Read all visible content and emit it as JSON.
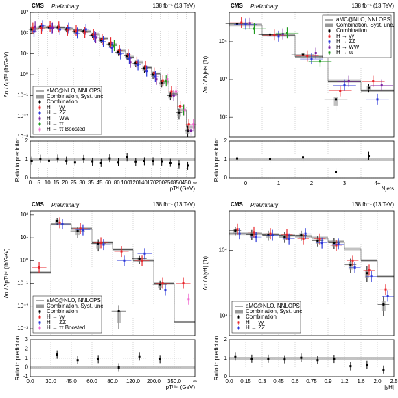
{
  "chart_data": [
    {
      "type": "log-histogram",
      "title": "CMS",
      "subtitle": "Preliminary",
      "lumi": "138 fb⁻¹ (13 TeV)",
      "ylabel": "Δσ / ΔpTᴴ (fb/GeV)",
      "xlabel": "pTᴴ (GeV)",
      "ratio_ylabel": "Ratio to prediction",
      "bin_edges": [
        "0",
        "5",
        "10",
        "15",
        "20",
        "25",
        "30",
        "35",
        "45",
        "60",
        "80",
        "100",
        "120",
        "140",
        "170",
        "200",
        "250",
        "350",
        "450",
        "∞"
      ],
      "prediction_name": "aMC@NLO, NNLOPS",
      "syst_name": "Combination, Syst. unc.",
      "prediction": [
        160,
        190,
        195,
        180,
        160,
        140,
        120,
        90,
        55,
        28,
        14,
        7,
        4,
        2.2,
        1.1,
        0.45,
        0.12,
        0.02,
        0.003
      ],
      "series": [
        {
          "name": "Combination",
          "color": "#000000",
          "values": [
            150,
            200,
            185,
            190,
            150,
            120,
            125,
            80,
            45,
            30,
            12,
            8,
            3.5,
            2,
            1.0,
            0.4,
            0.1,
            0.015,
            0.002
          ],
          "errors": [
            60,
            50,
            45,
            45,
            40,
            35,
            35,
            20,
            12,
            8,
            4,
            3,
            1.2,
            0.8,
            0.4,
            0.15,
            0.04,
            0.008,
            0.0015
          ],
          "ratio": [
            0.94,
            1.05,
            0.95,
            1.06,
            0.94,
            0.86,
            1.04,
            0.89,
            0.82,
            1.07,
            0.86,
            1.14,
            0.88,
            0.91,
            0.91,
            0.89,
            0.83,
            0.75,
            0.67
          ]
        },
        {
          "name": "H → γγ",
          "color": "#e8242a",
          "values": [
            180,
            170,
            210,
            200,
            140,
            130,
            110,
            85,
            50,
            35,
            15,
            9,
            4,
            2.5,
            1.2,
            0.5,
            0.15,
            0.03,
            0.004
          ]
        },
        {
          "name": "H → ZZ",
          "color": "#2a36d8",
          "values": [
            120,
            230,
            170,
            150,
            180,
            100,
            150,
            70,
            40,
            20,
            10,
            6,
            3,
            1.5,
            0.8,
            null,
            null,
            null,
            null
          ]
        },
        {
          "name": "H → WW",
          "color": "#7a1fa0",
          "values": [
            200,
            null,
            180,
            null,
            null,
            null,
            null,
            60,
            null,
            null,
            null,
            4,
            null,
            null,
            0.6,
            null,
            0.1,
            null,
            0.002
          ]
        },
        {
          "name": "H → ττ",
          "color": "#1f9a1f",
          "values": [
            null,
            null,
            null,
            null,
            null,
            null,
            null,
            null,
            null,
            25,
            null,
            null,
            null,
            null,
            null,
            0.5,
            null,
            0.02,
            null
          ]
        },
        {
          "name": "H → ττ Boosted",
          "color": "#f06bd0",
          "values": [
            null,
            null,
            null,
            null,
            null,
            null,
            null,
            null,
            null,
            null,
            null,
            null,
            null,
            null,
            null,
            0.6,
            0.15,
            0.02,
            0.004
          ]
        }
      ],
      "ylim": [
        0.001,
        1000
      ],
      "yticks": [
        {
          "value": 0.001,
          "label": "10⁻³"
        },
        {
          "value": 0.01,
          "label": "10⁻²"
        },
        {
          "value": 0.1,
          "label": "10⁻¹"
        },
        {
          "value": 1,
          "label": "10⁰"
        },
        {
          "value": 10,
          "label": "10¹"
        },
        {
          "value": 100,
          "label": "10²"
        },
        {
          "value": 1000,
          "label": "10³"
        }
      ],
      "ratio_ylim": [
        0,
        2
      ],
      "ratio_yticks": [
        0,
        1,
        2
      ],
      "grid": true,
      "legend": "lower left"
    },
    {
      "type": "log-bar",
      "title": "CMS",
      "subtitle": "Preliminary",
      "lumi": "138 fb⁻¹ (13 TeV)",
      "ylabel": "Δσ / ΔNjets (fb)",
      "xlabel": "Njets",
      "ratio_ylabel": "Ratio to prediction",
      "categories": [
        "0",
        "1",
        "2",
        "3",
        "4+"
      ],
      "prediction_name": "aMC@NLO, NNLOPS",
      "syst_name": "Combination, Syst. unc.",
      "prediction": [
        28000,
        15000,
        4000,
        900,
        500
      ],
      "series": [
        {
          "name": "Combination",
          "color": "#000000",
          "values": [
            30000,
            15500,
            4500,
            300,
            600
          ],
          "errors": [
            3000,
            2000,
            1200,
            150,
            150
          ],
          "ratio": [
            1.07,
            1.03,
            1.12,
            0.33,
            1.2
          ]
        },
        {
          "name": "H → γγ",
          "color": "#e8242a",
          "values": [
            32000,
            15000,
            4200,
            500,
            900
          ]
        },
        {
          "name": "H → ZZ",
          "color": "#2a36d8",
          "values": [
            29000,
            14000,
            3500,
            700,
            300
          ]
        },
        {
          "name": "H → WW",
          "color": "#7a1fa0",
          "values": [
            31000,
            16000,
            5000,
            900,
            700
          ]
        },
        {
          "name": "H → ττ",
          "color": "#1f9a1f",
          "values": [
            22000,
            17000,
            3000,
            null,
            null
          ]
        }
      ],
      "ylim": [
        30,
        60000
      ],
      "yticks": [
        {
          "value": 100,
          "label": "10²"
        },
        {
          "value": 1000,
          "label": "10³"
        },
        {
          "value": 10000,
          "label": "10⁴"
        }
      ],
      "ratio_ylim": [
        0,
        2
      ],
      "ratio_yticks": [
        0,
        1,
        2
      ],
      "grid": true,
      "legend": "upper right"
    },
    {
      "type": "log-histogram",
      "title": "CMS",
      "subtitle": "Preliminary",
      "lumi": "138 fb⁻¹ (13 TeV)",
      "ylabel": "Δσ / ΔpTᴴʲᵉᵗ (fb/GeV)",
      "xlabel": "pTᴴʲᵉᵗ (GeV)",
      "ratio_ylabel": "Ratio to prediction",
      "bin_edges": [
        "0.0",
        "30.0",
        "45.0",
        "60.0",
        "80.0",
        "120.0",
        "200.0",
        "350.0",
        "∞"
      ],
      "prediction_name": "aMC@NLO, NNLOPS",
      "syst_name": "Combination, Syst. unc.",
      "prediction": [
        0.3,
        40,
        25,
        6,
        3,
        1.0,
        0.1,
        0.002
      ],
      "series": [
        {
          "name": "Combination",
          "color": "#000000",
          "values": [
            null,
            55,
            20,
            5.5,
            0.006,
            1.2,
            0.09,
            null
          ],
          "errors": [
            null,
            20,
            10,
            3,
            0.005,
            0.5,
            0.04,
            null
          ],
          "ratio": [
            null,
            1.4,
            0.8,
            0.9,
            0,
            1.2,
            0.9,
            null
          ]
        },
        {
          "name": "H → γγ",
          "color": "#e8242a",
          "values": [
            0.5,
            45,
            25,
            6,
            2.5,
            1.0,
            0.1,
            0.1
          ]
        },
        {
          "name": "H → ZZ",
          "color": "#2a36d8",
          "values": [
            null,
            40,
            22,
            5,
            1,
            2,
            0.05,
            null
          ]
        },
        {
          "name": "H → ττ Boosted",
          "color": "#f06bd0",
          "values": [
            null,
            null,
            null,
            null,
            null,
            null,
            null,
            0.02
          ]
        }
      ],
      "ylim": [
        0.0005,
        150
      ],
      "yticks": [
        {
          "value": 0.001,
          "label": "10⁻³"
        },
        {
          "value": 0.01,
          "label": "10⁻²"
        },
        {
          "value": 0.1,
          "label": "10⁻¹"
        },
        {
          "value": 1,
          "label": "10⁰"
        },
        {
          "value": 10,
          "label": "10¹"
        },
        {
          "value": 100,
          "label": "10²"
        }
      ],
      "ratio_ylim": [
        -1,
        3
      ],
      "ratio_yticks": [
        -1,
        0,
        1,
        2,
        3
      ],
      "grid": true,
      "legend": "lower left"
    },
    {
      "type": "log-histogram",
      "title": "CMS",
      "subtitle": "Preliminary",
      "lumi": "138 fb⁻¹ (13 TeV)",
      "ylabel": "Δσ / Δ|yH| (fb)",
      "xlabel": "|yH|",
      "ratio_ylabel": "Ratio to prediction",
      "bin_edges": [
        "0.0",
        "0.15",
        "0.3",
        "0.45",
        "0.6",
        "0.75",
        "0.9",
        "1.2",
        "1.6",
        "2.0",
        "2.5"
      ],
      "prediction_name": "aMC@NLO, NNLOPS",
      "syst_name": "Combination, Syst. unc.",
      "prediction": [
        18000,
        18000,
        17500,
        17000,
        16500,
        15500,
        13500,
        10500,
        7000,
        4000
      ],
      "series": [
        {
          "name": "Combination",
          "color": "#000000",
          "values": [
            20000,
            17500,
            17000,
            16000,
            17000,
            14000,
            13000,
            6000,
            4500,
            1500
          ],
          "errors": [
            3000,
            3000,
            3000,
            3000,
            3000,
            2500,
            2500,
            1500,
            1200,
            500
          ],
          "ratio": [
            1.1,
            0.97,
            0.97,
            0.94,
            1.03,
            0.9,
            0.96,
            0.57,
            0.64,
            0.38
          ]
        },
        {
          "name": "H → γγ",
          "color": "#e8242a",
          "values": [
            21000,
            19000,
            18000,
            17500,
            15000,
            15000,
            12000,
            7000,
            5000,
            2500
          ]
        },
        {
          "name": "H → ZZ",
          "color": "#2a36d8",
          "values": [
            18000,
            16000,
            17000,
            15000,
            18000,
            13000,
            12500,
            5500,
            4000,
            2000
          ]
        }
      ],
      "ylim": [
        500,
        40000
      ],
      "yticks": [
        {
          "value": 1000,
          "label": "10³"
        },
        {
          "value": 10000,
          "label": "10⁴"
        }
      ],
      "ratio_ylim": [
        0,
        2
      ],
      "ratio_yticks": [
        0,
        1,
        2
      ],
      "grid": true,
      "legend": "lower left"
    }
  ]
}
